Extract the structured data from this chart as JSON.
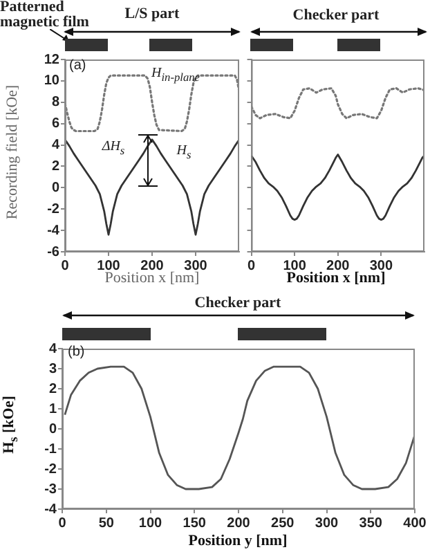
{
  "chart_data": [
    {
      "type": "line",
      "xlabel": "Position x [nm]",
      "ylabel": "Recording field  [kOe]",
      "xlim": [
        0,
        400
      ],
      "xticks": [
        0,
        100,
        200,
        300
      ],
      "ylim": [
        -6,
        12
      ],
      "yticks": [
        -6,
        -4,
        -2,
        0,
        2,
        4,
        6,
        8,
        10,
        12
      ],
      "annotations": [
        "Patterned magnetic film",
        "L/S part",
        "(a)",
        "H$_{in-plane}$",
        "ΔH$_{s}$",
        "H$_{s}$"
      ],
      "series": [
        {
          "color": "#777777",
          "line_style": "dotted",
          "x": [
            0,
            5,
            10,
            15,
            20,
            25,
            30,
            68,
            75,
            80,
            85,
            90,
            95,
            100,
            105,
            110,
            184,
            190,
            195,
            200,
            205,
            210,
            216,
            268,
            275,
            280,
            285,
            290,
            295,
            300,
            305,
            310,
            390,
            395,
            400
          ],
          "values": [
            7.9,
            7.0,
            6.2,
            5.6,
            5.4,
            5.3,
            5.3,
            5.3,
            5.5,
            6.2,
            7.3,
            8.7,
            9.8,
            10.3,
            10.5,
            10.5,
            10.5,
            10.2,
            9.4,
            8.0,
            6.8,
            5.9,
            5.4,
            5.3,
            5.5,
            6.2,
            7.3,
            8.7,
            9.8,
            10.3,
            10.5,
            10.5,
            10.5,
            10.1,
            9.0
          ]
        },
        {
          "color": "#333333",
          "line_style": "solid",
          "x": [
            0,
            10,
            20,
            30,
            40,
            50,
            60,
            70,
            80,
            90,
            95,
            100,
            105,
            110,
            120,
            130,
            140,
            150,
            160,
            170,
            180,
            190,
            195,
            200,
            210,
            220,
            230,
            240,
            250,
            260,
            270,
            280,
            290,
            295,
            300,
            305,
            310,
            320,
            330,
            340,
            350,
            360,
            370,
            380,
            390,
            395,
            400
          ],
          "values": [
            4.5,
            3.9,
            3.2,
            2.6,
            2.0,
            1.4,
            0.8,
            0.2,
            -0.6,
            -2.2,
            -3.4,
            -4.4,
            -3.4,
            -2.2,
            -0.6,
            0.2,
            0.8,
            1.4,
            2.0,
            2.6,
            3.2,
            3.9,
            4.2,
            4.5,
            3.9,
            3.2,
            2.6,
            2.0,
            1.4,
            0.8,
            0.2,
            -0.6,
            -2.2,
            -3.4,
            -4.4,
            -3.4,
            -2.2,
            -0.6,
            0.2,
            0.8,
            1.4,
            2.0,
            2.6,
            3.2,
            3.9,
            4.2,
            4.5
          ]
        }
      ]
    },
    {
      "type": "line",
      "xlabel": "Position x [nm]",
      "xlim": [
        0,
        400
      ],
      "xticks": [
        0,
        100,
        200,
        300
      ],
      "ylim": [
        -6,
        12
      ],
      "yticks": [
        -6,
        -4,
        -2,
        0,
        2,
        4,
        6,
        8,
        10,
        12
      ],
      "tick_labels": "x",
      "annotations": [
        "Checker part"
      ],
      "series": [
        {
          "color": "#777777",
          "line_style": "dotted",
          "x": [
            0,
            10,
            20,
            35,
            55,
            75,
            90,
            100,
            110,
            120,
            135,
            150,
            165,
            185,
            195,
            200,
            210,
            220,
            235,
            255,
            275,
            290,
            300,
            310,
            320,
            335,
            350,
            365,
            385,
            395,
            400
          ],
          "values": [
            7.6,
            6.8,
            6.5,
            6.8,
            6.9,
            6.6,
            6.5,
            7.2,
            8.4,
            9.2,
            9.3,
            8.9,
            9.2,
            9.3,
            8.6,
            7.8,
            6.9,
            6.5,
            6.8,
            6.9,
            6.6,
            6.5,
            7.2,
            8.4,
            9.2,
            9.3,
            8.9,
            9.2,
            9.3,
            9.2,
            9.1
          ]
        },
        {
          "color": "#333333",
          "line_style": "solid",
          "x": [
            0,
            10,
            20,
            30,
            40,
            50,
            60,
            70,
            80,
            90,
            95,
            100,
            105,
            110,
            120,
            130,
            140,
            150,
            160,
            170,
            180,
            190,
            195,
            200,
            210,
            220,
            230,
            240,
            250,
            260,
            270,
            280,
            290,
            295,
            300,
            305,
            310,
            320,
            330,
            340,
            350,
            360,
            370,
            380,
            390,
            395,
            400
          ],
          "values": [
            3.0,
            2.4,
            1.6,
            0.9,
            0.4,
            0.1,
            -0.3,
            -0.9,
            -1.7,
            -2.6,
            -2.9,
            -3.0,
            -2.9,
            -2.6,
            -1.7,
            -0.9,
            -0.3,
            0.1,
            0.4,
            0.9,
            1.6,
            2.4,
            2.8,
            3.1,
            2.4,
            1.6,
            0.9,
            0.4,
            0.1,
            -0.3,
            -0.9,
            -1.7,
            -2.6,
            -2.9,
            -3.0,
            -2.9,
            -2.6,
            -1.7,
            -0.9,
            -0.3,
            0.1,
            0.4,
            0.9,
            1.6,
            2.4,
            2.8,
            3.0
          ]
        }
      ]
    },
    {
      "type": "line",
      "xlabel": "Position y [nm]",
      "ylabel": "H$_{s}$ [kOe]",
      "xlim": [
        0,
        400
      ],
      "xticks": [
        0,
        50,
        100,
        150,
        200,
        250,
        300,
        350,
        400
      ],
      "ylim": [
        -4,
        4
      ],
      "yticks": [
        -4,
        -3,
        -2,
        -1,
        0,
        1,
        2,
        3,
        4
      ],
      "annotations": [
        "Checker part",
        "(b)"
      ],
      "series": [
        {
          "color": "#555555",
          "line_style": "solid",
          "x": [
            3,
            10,
            20,
            30,
            40,
            55,
            70,
            80,
            90,
            100,
            105,
            110,
            120,
            130,
            140,
            155,
            170,
            180,
            190,
            200,
            205,
            210,
            220,
            230,
            240,
            255,
            270,
            280,
            290,
            300,
            305,
            310,
            320,
            330,
            340,
            355,
            370,
            380,
            390,
            400
          ],
          "values": [
            0.7,
            1.7,
            2.4,
            2.8,
            3.0,
            3.1,
            3.1,
            2.8,
            2.0,
            0.6,
            -0.3,
            -1.2,
            -2.3,
            -2.8,
            -3.0,
            -3.0,
            -2.9,
            -2.5,
            -1.5,
            -0.2,
            0.5,
            1.4,
            2.4,
            2.9,
            3.1,
            3.1,
            3.1,
            2.8,
            2.0,
            0.6,
            -0.3,
            -1.2,
            -2.3,
            -2.8,
            -3.0,
            -3.0,
            -2.9,
            -2.5,
            -1.7,
            -0.3
          ]
        }
      ]
    }
  ]
}
